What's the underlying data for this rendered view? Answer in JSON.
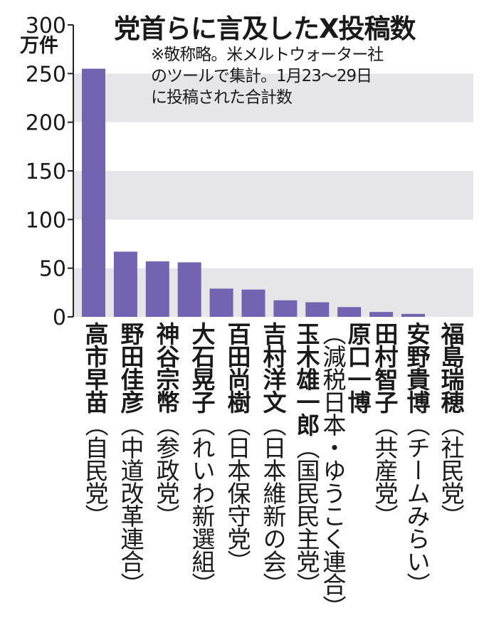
{
  "chart_data": {
    "type": "bar",
    "title": "党首らに言及したX投稿数",
    "note": "※敬称略。米メルトウォーター社\nのツールで集計。1月23～29日\nに投稿された合計数",
    "ylabel": "万件",
    "ylim": [
      0,
      300
    ],
    "yticks": [
      0,
      50,
      100,
      150,
      200,
      250,
      300
    ],
    "grid_bands": [
      [
        0,
        50
      ],
      [
        100,
        150
      ],
      [
        200,
        250
      ]
    ],
    "bar_color": "#7264b0",
    "band_color": "#e6e6e8",
    "categories": [
      {
        "name": "高市早苗",
        "party": "（自民党）"
      },
      {
        "name": "野田佳彦",
        "party": "（中道改革連合）"
      },
      {
        "name": "神谷宗幣",
        "party": "（参政党）"
      },
      {
        "name": "大石晃子",
        "party": "（れいわ新選組）"
      },
      {
        "name": "百田尚樹",
        "party": "（日本保守党）"
      },
      {
        "name": "吉村洋文",
        "party": "（日本維新の会）"
      },
      {
        "name": "玉木雄一郎",
        "party": "（国民民主党）"
      },
      {
        "name": "原口一博",
        "party": "（減税日本・ゆうこく連合）"
      },
      {
        "name": "田村智子",
        "party": "（共産党）"
      },
      {
        "name": "安野貴博",
        "party": "（チームみらい）"
      },
      {
        "name": "福島瑞穂",
        "party": "（社民党）"
      }
    ],
    "values": [
      255,
      67,
      57,
      56,
      29,
      28,
      17,
      15,
      10,
      5,
      3
    ]
  }
}
